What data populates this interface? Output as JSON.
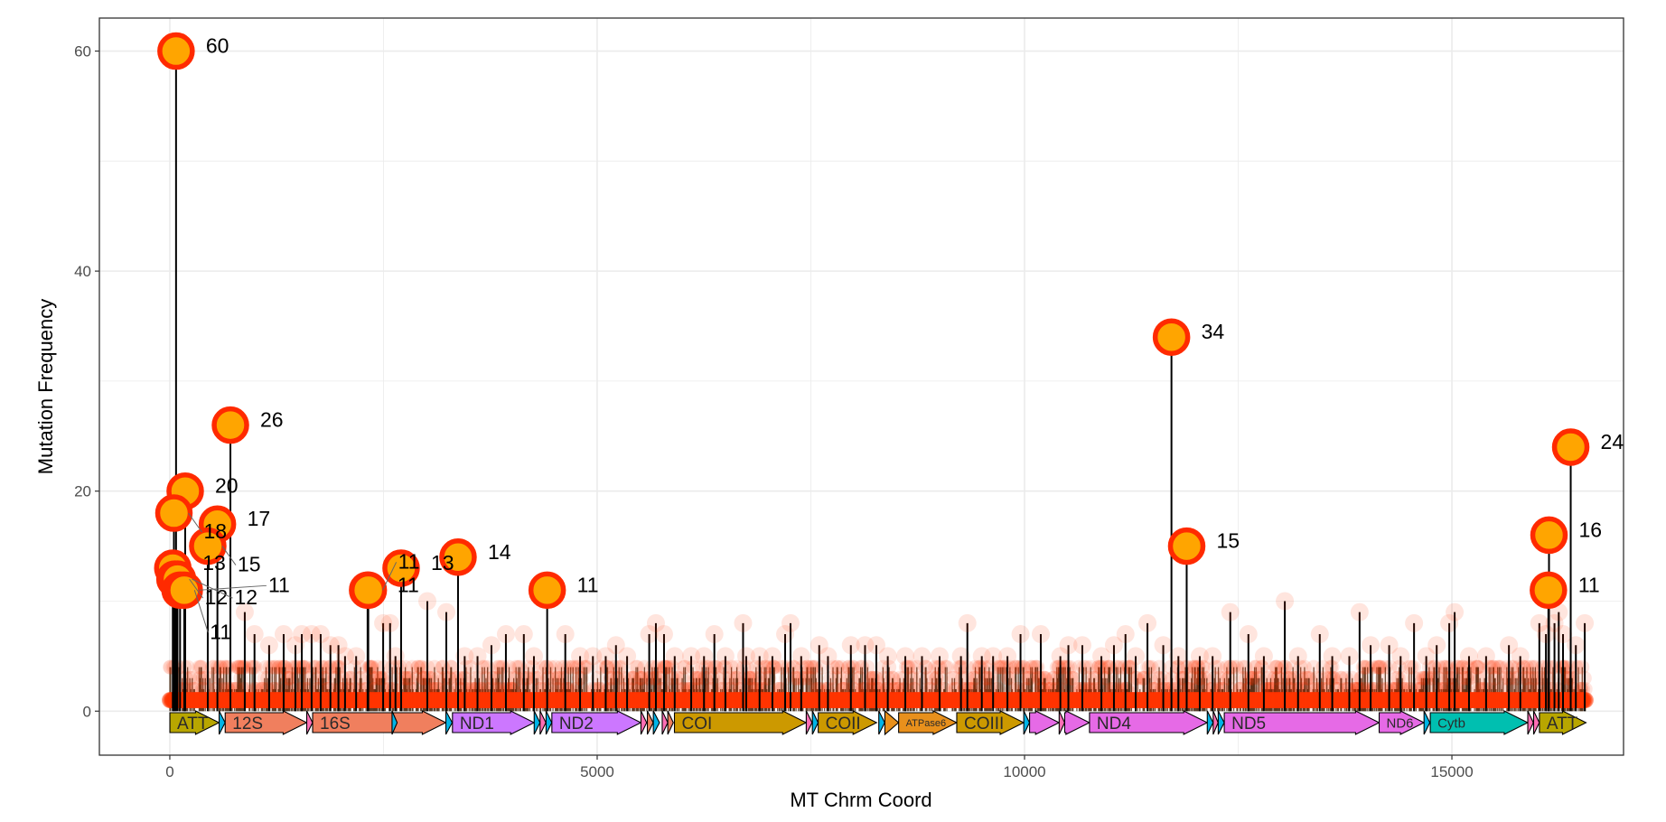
{
  "chart_data": {
    "type": "lollipop",
    "title": "",
    "xlabel": "MT Chrm Coord",
    "ylabel": "Mutation Frequency",
    "xlim": [
      -824,
      17008
    ],
    "ylim": [
      -4,
      63
    ],
    "x_ticks": [
      0,
      5000,
      10000,
      15000
    ],
    "x_tick_labels": [
      "0",
      "5000",
      "10000",
      "15000"
    ],
    "x_minor_ticks": [
      2500,
      7500,
      12500
    ],
    "y_ticks": [
      0,
      20,
      40,
      60
    ],
    "y_tick_labels": [
      "0",
      "20",
      "40",
      "60"
    ],
    "y_minor_ticks": [
      10,
      30,
      50
    ],
    "grid": true,
    "theme": "bw",
    "colors": {
      "highlight_fill": "#ffa500",
      "highlight_stroke": "#ff2a00",
      "background_point": "#ff3300",
      "stem": "#000000",
      "grid": "#ebebeb",
      "panel_border": "#333333"
    },
    "highlighted_points": [
      {
        "pos": 73,
        "freq": 60,
        "label": "60"
      },
      {
        "pos": 709,
        "freq": 26,
        "label": "26"
      },
      {
        "pos": 180,
        "freq": 20,
        "label": "20"
      },
      {
        "pos": 48,
        "freq": 18,
        "label": "18"
      },
      {
        "pos": 557,
        "freq": 17,
        "label": "17"
      },
      {
        "pos": 444,
        "freq": 15,
        "label": "15"
      },
      {
        "pos": 35,
        "freq": 13,
        "label": "13"
      },
      {
        "pos": 60,
        "freq": 12,
        "label": "12"
      },
      {
        "pos": 90,
        "freq": 12,
        "label": "12"
      },
      {
        "pos": 120,
        "freq": 11,
        "label": "11"
      },
      {
        "pos": 169,
        "freq": 11,
        "label": "11"
      },
      {
        "pos": 2314,
        "freq": 11,
        "label": "11"
      },
      {
        "pos": 2322,
        "freq": 11,
        "label": "11"
      },
      {
        "pos": 2706,
        "freq": 13,
        "label": "13"
      },
      {
        "pos": 3372,
        "freq": 14,
        "label": "14"
      },
      {
        "pos": 4415,
        "freq": 11,
        "label": "11"
      },
      {
        "pos": 11719,
        "freq": 34,
        "label": "34"
      },
      {
        "pos": 11897,
        "freq": 15,
        "label": "15"
      },
      {
        "pos": 16390,
        "freq": 24,
        "label": "24"
      },
      {
        "pos": 16136,
        "freq": 16,
        "label": "16"
      },
      {
        "pos": 16129,
        "freq": 11,
        "label": "11"
      }
    ],
    "background_points": [
      [
        877,
        9
      ],
      [
        991,
        7
      ],
      [
        1162,
        6
      ],
      [
        1332,
        7
      ],
      [
        1470,
        6
      ],
      [
        1544,
        7
      ],
      [
        1659,
        7
      ],
      [
        1765,
        7
      ],
      [
        1879,
        6
      ],
      [
        1973,
        6
      ],
      [
        2050,
        5
      ],
      [
        2180,
        5
      ],
      [
        2496,
        8
      ],
      [
        2577,
        8
      ],
      [
        2640,
        5
      ],
      [
        3013,
        10
      ],
      [
        3235,
        9
      ],
      [
        3450,
        5
      ],
      [
        3600,
        5
      ],
      [
        3763,
        6
      ],
      [
        3932,
        7
      ],
      [
        4142,
        7
      ],
      [
        4260,
        5
      ],
      [
        4627,
        7
      ],
      [
        4800,
        5
      ],
      [
        4950,
        5
      ],
      [
        5100,
        5
      ],
      [
        5220,
        6
      ],
      [
        5350,
        5
      ],
      [
        5609,
        7
      ],
      [
        5687,
        8
      ],
      [
        5782,
        7
      ],
      [
        5907,
        5
      ],
      [
        6100,
        5
      ],
      [
        6250,
        5
      ],
      [
        6371,
        7
      ],
      [
        6500,
        5
      ],
      [
        6707,
        8
      ],
      [
        6744,
        5
      ],
      [
        6900,
        5
      ],
      [
        7050,
        5
      ],
      [
        7199,
        7
      ],
      [
        7262,
        8
      ],
      [
        7387,
        5
      ],
      [
        7598,
        6
      ],
      [
        7700,
        5
      ],
      [
        7968,
        6
      ],
      [
        8134,
        6
      ],
      [
        8266,
        6
      ],
      [
        8400,
        5
      ],
      [
        8605,
        5
      ],
      [
        8800,
        5
      ],
      [
        9006,
        5
      ],
      [
        9256,
        5
      ],
      [
        9331,
        8
      ],
      [
        9500,
        5
      ],
      [
        9632,
        5
      ],
      [
        9800,
        5
      ],
      [
        9953,
        7
      ],
      [
        10190,
        7
      ],
      [
        10419,
        5
      ],
      [
        10513,
        6
      ],
      [
        10676,
        6
      ],
      [
        10899,
        5
      ],
      [
        11046,
        6
      ],
      [
        11181,
        7
      ],
      [
        11300,
        5
      ],
      [
        11438,
        8
      ],
      [
        11623,
        6
      ],
      [
        11800,
        5
      ],
      [
        12050,
        5
      ],
      [
        12200,
        5
      ],
      [
        12407,
        9
      ],
      [
        12619,
        7
      ],
      [
        12800,
        5
      ],
      [
        13045,
        10
      ],
      [
        13200,
        5
      ],
      [
        13454,
        7
      ],
      [
        13600,
        5
      ],
      [
        13800,
        5
      ],
      [
        13920,
        9
      ],
      [
        14049,
        6
      ],
      [
        14266,
        6
      ],
      [
        14400,
        5
      ],
      [
        14557,
        8
      ],
      [
        14700,
        5
      ],
      [
        14822,
        6
      ],
      [
        14969,
        8
      ],
      [
        15032,
        9
      ],
      [
        15200,
        5
      ],
      [
        15400,
        5
      ],
      [
        15667,
        6
      ],
      [
        15800,
        5
      ],
      [
        16023,
        8
      ],
      [
        16100,
        7
      ],
      [
        16200,
        8
      ],
      [
        16250,
        9
      ],
      [
        16300,
        7
      ],
      [
        16450,
        6
      ],
      [
        16554,
        8
      ]
    ],
    "low_frequency_band": {
      "range": [
        1,
        16569
      ],
      "freq_min": 1,
      "freq_max": 4
    },
    "genes": [
      {
        "start": 1,
        "end": 576,
        "label": "ATT",
        "color": "#b8a600"
      },
      {
        "start": 577,
        "end": 647,
        "label": "",
        "color": "#00b4e6"
      },
      {
        "start": 648,
        "end": 1601,
        "label": "12S",
        "color": "#f07f5e"
      },
      {
        "start": 1602,
        "end": 1670,
        "label": "",
        "color": "#ff6eb4"
      },
      {
        "start": 1671,
        "end": 3229,
        "label": "16S",
        "color": "#f07f5e"
      },
      {
        "start": 2600,
        "end": 2660,
        "label": "",
        "color": "#00b4e6"
      },
      {
        "start": 3230,
        "end": 3304,
        "label": "",
        "color": "#00b4e6"
      },
      {
        "start": 3307,
        "end": 4262,
        "label": "ND1",
        "color": "#cc77ff"
      },
      {
        "start": 4263,
        "end": 4331,
        "label": "",
        "color": "#00b4e6"
      },
      {
        "start": 4332,
        "end": 4400,
        "label": "",
        "color": "#ff6eb4"
      },
      {
        "start": 4402,
        "end": 4469,
        "label": "",
        "color": "#00b4e6"
      },
      {
        "start": 4470,
        "end": 5511,
        "label": "ND2",
        "color": "#cc77ff"
      },
      {
        "start": 5512,
        "end": 5579,
        "label": "",
        "color": "#ff6eb4"
      },
      {
        "start": 5587,
        "end": 5655,
        "label": "",
        "color": "#f07f5e"
      },
      {
        "start": 5657,
        "end": 5729,
        "label": "",
        "color": "#00b4e6"
      },
      {
        "start": 5761,
        "end": 5826,
        "label": "",
        "color": "#ff6eb4"
      },
      {
        "start": 5826,
        "end": 5891,
        "label": "",
        "color": "#f07f5e"
      },
      {
        "start": 5904,
        "end": 7445,
        "label": "COI",
        "color": "#cc9900"
      },
      {
        "start": 7446,
        "end": 7514,
        "label": "",
        "color": "#ff6eb4"
      },
      {
        "start": 7518,
        "end": 7585,
        "label": "",
        "color": "#00b4e6"
      },
      {
        "start": 7586,
        "end": 8269,
        "label": "COII",
        "color": "#cc9900"
      },
      {
        "start": 8295,
        "end": 8364,
        "label": "",
        "color": "#00b4e6"
      },
      {
        "start": 8366,
        "end": 8526,
        "label": "",
        "color": "#e8901c"
      },
      {
        "start": 8527,
        "end": 9206,
        "label": "ATPase6",
        "color": "#e8901c"
      },
      {
        "start": 9207,
        "end": 9990,
        "label": "COIII",
        "color": "#cc9900"
      },
      {
        "start": 9991,
        "end": 10058,
        "label": "",
        "color": "#00b4e6"
      },
      {
        "start": 10059,
        "end": 10404,
        "label": "",
        "color": "#e66ae6"
      },
      {
        "start": 10405,
        "end": 10469,
        "label": "",
        "color": "#ff6eb4"
      },
      {
        "start": 10470,
        "end": 10759,
        "label": "",
        "color": "#e66ae6"
      },
      {
        "start": 10760,
        "end": 12137,
        "label": "ND4",
        "color": "#e66ae6"
      },
      {
        "start": 12138,
        "end": 12206,
        "label": "",
        "color": "#00b4e6"
      },
      {
        "start": 12207,
        "end": 12265,
        "label": "",
        "color": "#ff6eb4"
      },
      {
        "start": 12266,
        "end": 12336,
        "label": "",
        "color": "#00b4e6"
      },
      {
        "start": 12337,
        "end": 14148,
        "label": "ND5",
        "color": "#e66ae6"
      },
      {
        "start": 14149,
        "end": 14673,
        "label": "ND6",
        "color": "#e66ae6"
      },
      {
        "start": 14674,
        "end": 14742,
        "label": "",
        "color": "#00b4e6"
      },
      {
        "start": 14747,
        "end": 15887,
        "label": "Cytb",
        "color": "#00bfb0"
      },
      {
        "start": 15888,
        "end": 15953,
        "label": "",
        "color": "#ff6eb4"
      },
      {
        "start": 15956,
        "end": 16023,
        "label": "",
        "color": "#ff6eb4"
      },
      {
        "start": 16024,
        "end": 16569,
        "label": "ATT",
        "color": "#b8a600"
      }
    ]
  }
}
